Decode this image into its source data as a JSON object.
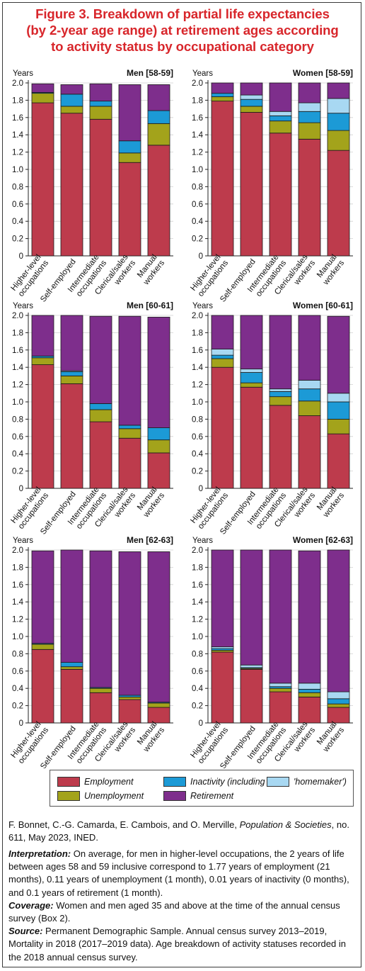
{
  "figure": {
    "title_lines": [
      "Figure 3. Breakdown of partial life expectancies",
      "(by 2-year age range) at retirement ages according",
      "to activity status by occupational category"
    ],
    "legend": [
      {
        "key": "employment",
        "label": "Employment",
        "color": "#bd3b4c"
      },
      {
        "key": "unemployment",
        "label": "Unemployment",
        "color": "#a3a31b"
      },
      {
        "key": "inactivity",
        "label": "Inactivity (including",
        "color": "#1c9ad6"
      },
      {
        "key": "homemaker",
        "label": "'homemaker')",
        "color": "#a8d8f2"
      },
      {
        "key": "retirement",
        "label": "Retirement",
        "color": "#7e2e8c"
      }
    ],
    "source_pre": "F. Bonnet, C.-G. Camarda, E. Cambois, and O. Merville, ",
    "source_journal": "Population & Societies",
    "source_post": ", no. 611, May 2023, INED.",
    "interpretation_label": "Interpretation:",
    "interpretation_text": " On average, for men in higher-level occupations, the 2 years of life between ages 58 and 59 inclusive correspond to 1.77 years of employment (21 months), 0.11 years of unemployment (1 month), 0.01 years of inactivity (0 months), and 0.1 years of retirement (1 month).",
    "coverage_label": "Coverage:",
    "coverage_text": " Women and men aged 35 and above at the time of the annual census survey (Box 2).",
    "sourcenote_label": "Source:",
    "sourcenote_text": " Permanent Demographic Sample. Annual census survey 2013–2019, Mortality in 2018 (2017–2019 data). Age breakdown of activity statuses recorded in the 2018 annual census survey."
  },
  "chart_data": [
    {
      "type": "bar",
      "stacked": true,
      "title": "Men [58-59]",
      "ylabel": "Years",
      "ylim": [
        0,
        2
      ],
      "yticks": [
        "0",
        "0.2",
        "0.4",
        "0.6",
        "0.8",
        "1.0",
        "1.2",
        "1.4",
        "1.6",
        "1.8",
        "2.0"
      ],
      "categories": [
        [
          "Higher-level",
          "occupations"
        ],
        [
          "Self-employed"
        ],
        [
          "Intermediate",
          "occupations"
        ],
        [
          "Clerical/sales",
          "workers"
        ],
        [
          "Manual",
          "workers"
        ]
      ],
      "series": [
        {
          "name": "Employment",
          "values": [
            1.77,
            1.65,
            1.58,
            1.08,
            1.28
          ]
        },
        {
          "name": "Unemployment",
          "values": [
            0.11,
            0.08,
            0.15,
            0.11,
            0.25
          ]
        },
        {
          "name": "Inactivity (including",
          "values": [
            0.01,
            0.14,
            0.06,
            0.14,
            0.15
          ]
        },
        {
          "name": "'homemaker')",
          "values": [
            0.0,
            0.0,
            0.0,
            0.0,
            0.0
          ]
        },
        {
          "name": "Retirement",
          "values": [
            0.1,
            0.11,
            0.2,
            0.65,
            0.3
          ]
        }
      ]
    },
    {
      "type": "bar",
      "stacked": true,
      "title": "Women [58-59]",
      "ylabel": "Years",
      "ylim": [
        0,
        2
      ],
      "yticks": [
        "0",
        "0.2",
        "0.4",
        "0.6",
        "0.8",
        "1.0",
        "1.2",
        "1.4",
        "1.6",
        "1.8",
        "2.0"
      ],
      "categories": [
        [
          "Higher-level",
          "occupations"
        ],
        [
          "Self-employed"
        ],
        [
          "Intermediate",
          "occupations"
        ],
        [
          "Clerical/sales",
          "workers"
        ],
        [
          "Manual",
          "workers"
        ]
      ],
      "series": [
        {
          "name": "Employment",
          "values": [
            1.79,
            1.66,
            1.42,
            1.35,
            1.22
          ]
        },
        {
          "name": "Unemployment",
          "values": [
            0.05,
            0.07,
            0.14,
            0.19,
            0.23
          ]
        },
        {
          "name": "Inactivity (including",
          "values": [
            0.04,
            0.08,
            0.06,
            0.13,
            0.2
          ]
        },
        {
          "name": "'homemaker')",
          "values": [
            0.0,
            0.05,
            0.05,
            0.1,
            0.17
          ]
        },
        {
          "name": "Retirement",
          "values": [
            0.12,
            0.14,
            0.33,
            0.23,
            0.18
          ]
        }
      ]
    },
    {
      "type": "bar",
      "stacked": true,
      "title": "Men [60-61]",
      "ylabel": "Years",
      "ylim": [
        0,
        2
      ],
      "yticks": [
        "0",
        "0.2",
        "0.4",
        "0.6",
        "0.8",
        "1.0",
        "1.2",
        "1.4",
        "1.6",
        "1.8",
        "2.0"
      ],
      "categories": [
        [
          "Higher-level",
          "occupations"
        ],
        [
          "Self-employed"
        ],
        [
          "Intermediate",
          "occupations"
        ],
        [
          "Clerical/sales",
          "workers"
        ],
        [
          "Manual",
          "workers"
        ]
      ],
      "series": [
        {
          "name": "Employment",
          "values": [
            1.43,
            1.21,
            0.77,
            0.58,
            0.41
          ]
        },
        {
          "name": "Unemployment",
          "values": [
            0.08,
            0.09,
            0.14,
            0.11,
            0.15
          ]
        },
        {
          "name": "Inactivity (including",
          "values": [
            0.02,
            0.05,
            0.07,
            0.04,
            0.14
          ]
        },
        {
          "name": "'homemaker')",
          "values": [
            0.0,
            0.01,
            0.0,
            0.0,
            0.0
          ]
        },
        {
          "name": "Retirement",
          "values": [
            0.47,
            0.64,
            1.01,
            1.26,
            1.28
          ]
        }
      ]
    },
    {
      "type": "bar",
      "stacked": true,
      "title": "Women [60-61]",
      "ylabel": "Years",
      "ylim": [
        0,
        2
      ],
      "yticks": [
        "0",
        "0.2",
        "0.4",
        "0.6",
        "0.8",
        "1.0",
        "1.2",
        "1.4",
        "1.6",
        "1.8",
        "2.0"
      ],
      "categories": [
        [
          "Higher-level",
          "occupations"
        ],
        [
          "Self-employed"
        ],
        [
          "Intermediate",
          "occupations"
        ],
        [
          "Clerical/sales",
          "workers"
        ],
        [
          "Manual",
          "workers"
        ]
      ],
      "series": [
        {
          "name": "Employment",
          "values": [
            1.4,
            1.17,
            0.96,
            0.84,
            0.63
          ]
        },
        {
          "name": "Unemployment",
          "values": [
            0.1,
            0.05,
            0.1,
            0.17,
            0.17
          ]
        },
        {
          "name": "Inactivity (including",
          "values": [
            0.04,
            0.12,
            0.06,
            0.14,
            0.2
          ]
        },
        {
          "name": "'homemaker')",
          "values": [
            0.07,
            0.04,
            0.03,
            0.1,
            0.1
          ]
        },
        {
          "name": "Retirement",
          "values": [
            0.39,
            0.62,
            0.85,
            0.75,
            0.89
          ]
        }
      ]
    },
    {
      "type": "bar",
      "stacked": true,
      "title": "Men [62-63]",
      "ylabel": "Years",
      "ylim": [
        0,
        2
      ],
      "yticks": [
        "0",
        "0.2",
        "0.4",
        "0.6",
        "0.8",
        "1.0",
        "1.2",
        "1.4",
        "1.6",
        "1.8",
        "2.0"
      ],
      "categories": [
        [
          "Higher-level",
          "occupations"
        ],
        [
          "Self-employed"
        ],
        [
          "Intermediate",
          "occupations"
        ],
        [
          "Clerical/sales",
          "workers"
        ],
        [
          "Manual",
          "workers"
        ]
      ],
      "series": [
        {
          "name": "Employment",
          "values": [
            0.85,
            0.62,
            0.35,
            0.27,
            0.18
          ]
        },
        {
          "name": "Unemployment",
          "values": [
            0.06,
            0.03,
            0.05,
            0.03,
            0.05
          ]
        },
        {
          "name": "Inactivity (including",
          "values": [
            0.01,
            0.05,
            0.01,
            0.02,
            0.01
          ]
        },
        {
          "name": "'homemaker')",
          "values": [
            0.0,
            0.0,
            0.0,
            0.0,
            0.0
          ]
        },
        {
          "name": "Retirement",
          "values": [
            1.07,
            1.3,
            1.58,
            1.66,
            1.74
          ]
        }
      ]
    },
    {
      "type": "bar",
      "stacked": true,
      "title": "Women [62-63]",
      "ylabel": "Years",
      "ylim": [
        0,
        2
      ],
      "yticks": [
        "0",
        "0.2",
        "0.4",
        "0.6",
        "0.8",
        "1.0",
        "1.2",
        "1.4",
        "1.6",
        "1.8",
        "2.0"
      ],
      "categories": [
        [
          "Higher-level",
          "occupations"
        ],
        [
          "Self-employed"
        ],
        [
          "Intermediate",
          "occupations"
        ],
        [
          "Clerical/sales",
          "workers"
        ],
        [
          "Manual",
          "workers"
        ]
      ],
      "series": [
        {
          "name": "Employment",
          "values": [
            0.82,
            0.62,
            0.36,
            0.3,
            0.18
          ]
        },
        {
          "name": "Unemployment",
          "values": [
            0.02,
            0.01,
            0.04,
            0.05,
            0.04
          ]
        },
        {
          "name": "Inactivity (including",
          "values": [
            0.02,
            0.01,
            0.02,
            0.04,
            0.06
          ]
        },
        {
          "name": "'homemaker')",
          "values": [
            0.02,
            0.03,
            0.04,
            0.07,
            0.08
          ]
        },
        {
          "name": "Retirement",
          "values": [
            1.12,
            1.33,
            1.54,
            1.53,
            1.64
          ]
        }
      ]
    }
  ]
}
